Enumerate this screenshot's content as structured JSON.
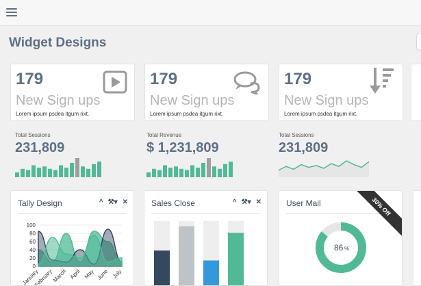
{
  "page": {
    "title": "Widget Designs"
  },
  "stats": [
    {
      "number": "179",
      "label": "New Sign ups",
      "sub": "Lorem ipsum psdea itgum rixt.",
      "icon": "play-icon"
    },
    {
      "number": "179",
      "label": "New Sign ups",
      "sub": "Lorem ipsum psdea itgum rixt.",
      "icon": "chat-bubbles-icon"
    },
    {
      "number": "179",
      "label": "New Sign ups",
      "sub": "Lorem ipsum psdea itgum rixt.",
      "icon": "sort-descending-icon"
    }
  ],
  "metrics": [
    {
      "label": "Total Sessions",
      "value": "231,809",
      "chart": "bars",
      "bars": [
        4,
        7,
        6,
        10,
        8,
        9,
        7,
        6,
        10,
        8,
        12,
        16,
        9,
        7,
        11,
        13
      ]
    },
    {
      "label": "Total Revenue",
      "value": "$ 1,231,809",
      "chart": "bars",
      "bars": [
        4,
        7,
        6,
        10,
        8,
        9,
        7,
        6,
        10,
        8,
        12,
        16,
        9,
        7,
        11,
        13
      ]
    },
    {
      "label": "Total Sessions",
      "value": "231,809",
      "chart": "line",
      "line": [
        6,
        10,
        7,
        12,
        9,
        11,
        8,
        13,
        10,
        16,
        12,
        9,
        15
      ]
    }
  ],
  "panels": {
    "tally": {
      "title": "Tally Design",
      "yticks": [
        "100",
        "80",
        "60",
        "40",
        "20",
        "0"
      ],
      "xticks": [
        "January",
        "February",
        "March",
        "April",
        "May",
        "June",
        "July"
      ],
      "chart_data": {
        "type": "area",
        "categories": [
          "January",
          "February",
          "March",
          "April",
          "May",
          "June",
          "July"
        ],
        "ylim": [
          0,
          100
        ],
        "series": [
          {
            "values": [
              40,
              10,
              80,
              10,
              85,
              60,
              5
            ]
          },
          {
            "values": [
              85,
              15,
              10,
              40,
              5,
              90,
              10
            ]
          },
          {
            "values": [
              5,
              70,
              30,
              20,
              75,
              10,
              20
            ]
          }
        ]
      }
    },
    "sales": {
      "title": "Sales Close",
      "bars": [
        {
          "fill": 0.55,
          "color": "#34495e"
        },
        {
          "fill": 0.92,
          "color": "#bdc3c7"
        },
        {
          "fill": 0.4,
          "color": "#3498db"
        },
        {
          "fill": 0.82,
          "color": "#52b997"
        }
      ]
    },
    "mail": {
      "title": "User Mail",
      "percent": 86,
      "percent_text": "86",
      "percent_sign": "%",
      "ribbon": "30% Off"
    }
  },
  "colors": {
    "green": "#52b997",
    "gray": "#9e9e9e",
    "navy": "#34495e",
    "blue": "#3498db"
  }
}
